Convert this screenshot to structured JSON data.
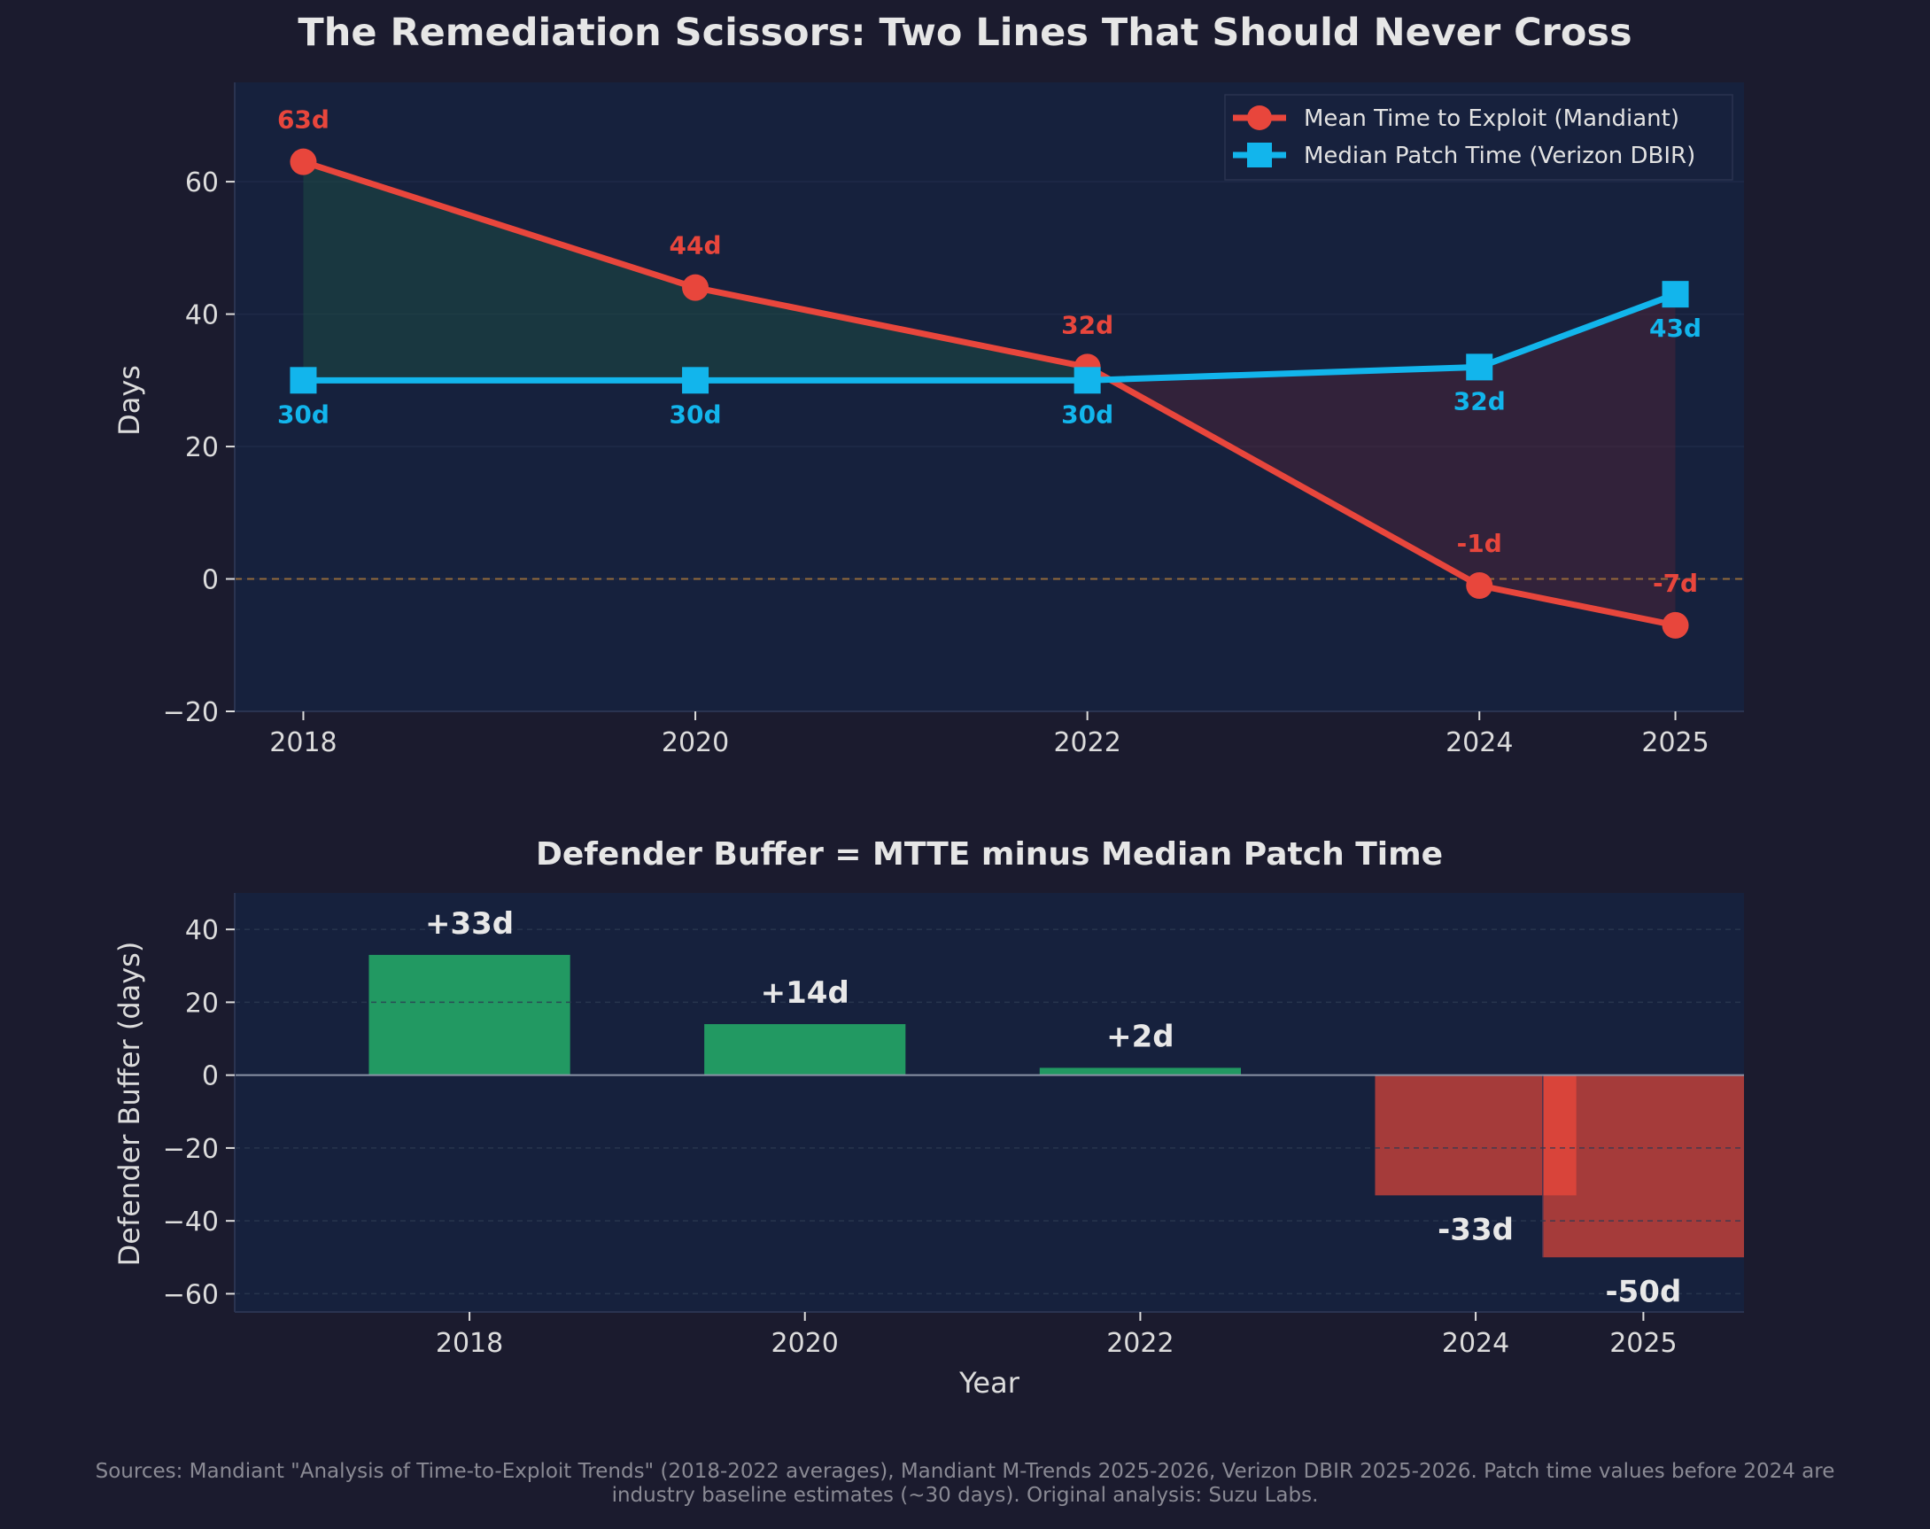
{
  "title": "The Remediation Scissors: Two Lines That Should Never Cross",
  "footer_line1": "Sources: Mandiant \"Analysis of Time-to-Exploit Trends\" (2018-2022 averages), Mandiant M-Trends 2025-2026, Verizon DBIR 2025-2026. Patch time values before 2024 are",
  "footer_line2": "industry baseline estimates (~30 days). Original analysis: Suzu Labs.",
  "colors": {
    "exploit": "#e8463c",
    "patch": "#12b5ec",
    "positive_bar": "#229962",
    "negative_bar": "#a53b3a",
    "negative_accent": "#d9443a",
    "background": "#1b1b2e",
    "panel": "#16213d"
  },
  "chart_data": [
    {
      "type": "line",
      "x": [
        2018,
        2020,
        2022,
        2024,
        2025
      ],
      "x_tick_labels": [
        "2018",
        "2020",
        "2022",
        "2024",
        "2025"
      ],
      "ylabel": "Days",
      "xlabel": "",
      "ylim": [
        -20,
        75
      ],
      "y_ticks": [
        {
          "v": 60,
          "label": "60"
        },
        {
          "v": 40,
          "label": "40"
        },
        {
          "v": 20,
          "label": "20"
        },
        {
          "v": 0,
          "label": "0"
        },
        {
          "v": -20,
          "label": "−20"
        }
      ],
      "series": [
        {
          "name": "Mean Time to Exploit (Mandiant)",
          "values": [
            63,
            44,
            32,
            -1,
            -7
          ],
          "labels": [
            "63d",
            "44d",
            "32d",
            "-1d",
            "-7d"
          ],
          "marker": "circle"
        },
        {
          "name": "Median Patch Time (Verizon DBIR)",
          "values": [
            30,
            30,
            30,
            32,
            43
          ],
          "labels": [
            "30d",
            "30d",
            "30d",
            "32d",
            "43d"
          ],
          "marker": "square"
        }
      ],
      "reference_line": 0,
      "legend": "top-right",
      "grid": true
    },
    {
      "type": "bar",
      "title": "Defender Buffer = MTTE minus Median Patch Time",
      "categories": [
        "2018",
        "2020",
        "2022",
        "2024",
        "2025"
      ],
      "values": [
        33,
        14,
        2,
        -33,
        -50
      ],
      "labels": [
        "+33d",
        "+14d",
        "+2d",
        "-33d",
        "-50d"
      ],
      "ylabel": "Defender Buffer (days)",
      "xlabel": "Year",
      "ylim": [
        -65,
        50
      ],
      "y_ticks": [
        {
          "v": 40,
          "label": "40"
        },
        {
          "v": 20,
          "label": "20"
        },
        {
          "v": 0,
          "label": "0"
        },
        {
          "v": -20,
          "label": "−20"
        },
        {
          "v": -40,
          "label": "−40"
        },
        {
          "v": -60,
          "label": "−60"
        }
      ],
      "grid": true
    }
  ]
}
